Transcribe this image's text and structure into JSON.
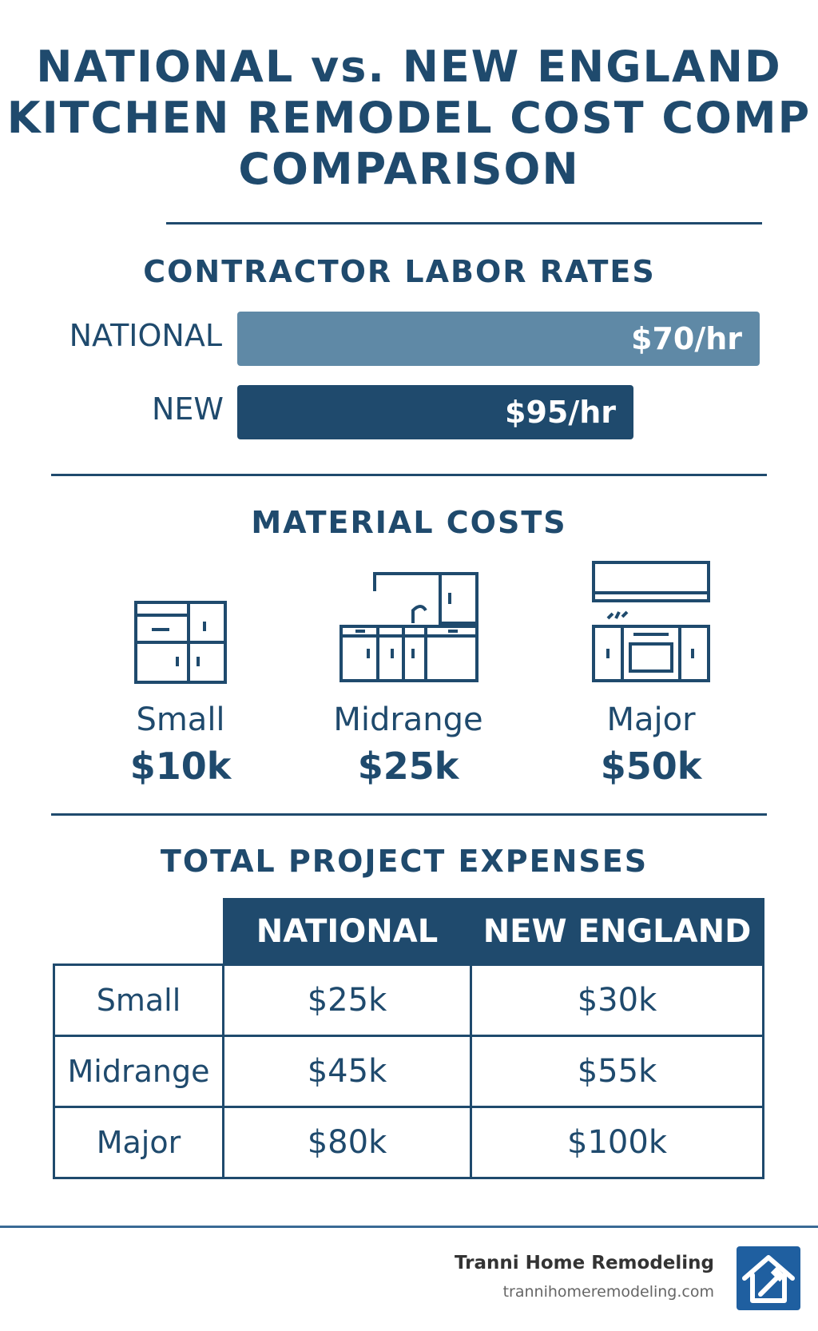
{
  "header": {
    "title_lines": [
      "NATIONAL vs. NEW ENGLAND",
      "KITCHEN REMODEL COST COMP",
      "COMPARISON"
    ]
  },
  "labor": {
    "title": "CONTRACTOR LABOR RATES",
    "rows": [
      {
        "label": "NATIONAL",
        "value": "$70/hr"
      },
      {
        "label": "NEW",
        "value": "$95/hr"
      }
    ]
  },
  "materials": {
    "title": "MATERIAL COSTS",
    "items": [
      {
        "name": "Small",
        "value": "$10k",
        "icon": "small-cabinet-icon"
      },
      {
        "name": "Midrange",
        "value": "$25k",
        "icon": "midrange-kitchen-icon"
      },
      {
        "name": "Major",
        "value": "$50k",
        "icon": "major-kitchen-icon"
      }
    ]
  },
  "expenses": {
    "title": "TOTAL PROJECT EXPENSES",
    "columns": [
      "NATIONAL",
      "NEW ENGLAND"
    ],
    "rows": [
      {
        "label": "Small",
        "national": "$25k",
        "new_england": "$30k"
      },
      {
        "label": "Midrange",
        "national": "$45k",
        "new_england": "$55k"
      },
      {
        "label": "Major",
        "national": "$80k",
        "new_england": "$100k"
      }
    ]
  },
  "footer": {
    "brand_name": "Tranni Home Remodeling",
    "brand_url": "trannihomeremodeling.com",
    "logo_icon": "house-hammer-logo-icon"
  },
  "chart_data": [
    {
      "type": "bar",
      "title": "CONTRACTOR LABOR RATES",
      "categories": [
        "NATIONAL",
        "NEW"
      ],
      "values": [
        70,
        95
      ],
      "value_labels": [
        "$70/hr",
        "$95/hr"
      ],
      "xlabel": "",
      "ylabel": ""
    },
    {
      "type": "table",
      "title": "TOTAL PROJECT EXPENSES",
      "columns": [
        "",
        "NATIONAL",
        "NEW ENGLAND"
      ],
      "rows": [
        [
          "Small",
          "$25k",
          "$30k"
        ],
        [
          "Midrange",
          "$45k",
          "$55k"
        ],
        [
          "Major",
          "$80k",
          "$100k"
        ]
      ]
    }
  ]
}
